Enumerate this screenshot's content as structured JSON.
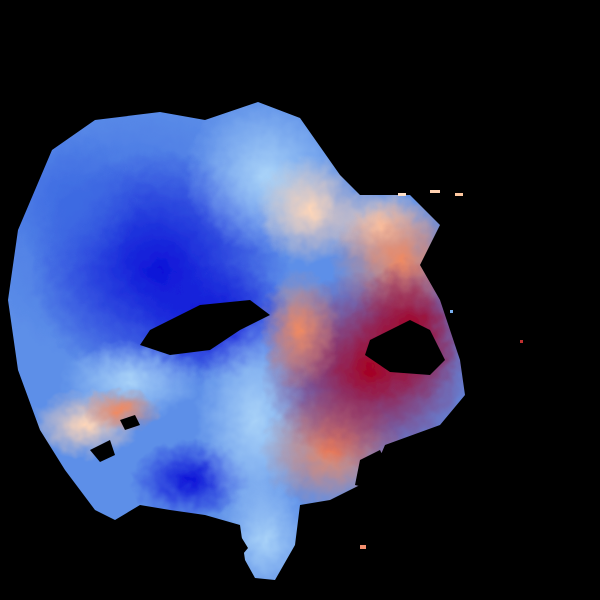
{
  "image": {
    "subject": "doppler-radar-velocity-sweep",
    "background_color": "#000000",
    "colormap": [
      "#0a0fd6",
      "#3a63e0",
      "#7eb6f2",
      "#cfe6ff",
      "#ffe8d2",
      "#f3a37c",
      "#e0402e",
      "#a50023"
    ],
    "inbound_color": "#1016d8",
    "outbound_color": "#a50023",
    "zero_color": "#f2f2f2"
  }
}
